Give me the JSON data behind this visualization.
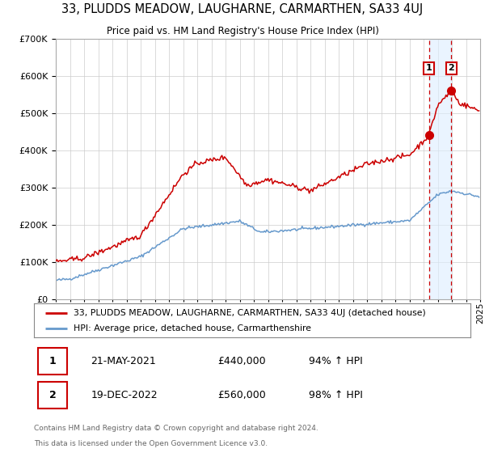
{
  "title": "33, PLUDDS MEADOW, LAUGHARNE, CARMARTHEN, SA33 4UJ",
  "subtitle": "Price paid vs. HM Land Registry's House Price Index (HPI)",
  "legend_line1": "33, PLUDDS MEADOW, LAUGHARNE, CARMARTHEN, SA33 4UJ (detached house)",
  "legend_line2": "HPI: Average price, detached house, Carmarthenshire",
  "footnote1": "Contains HM Land Registry data © Crown copyright and database right 2024.",
  "footnote2": "This data is licensed under the Open Government Licence v3.0.",
  "transaction1_label": "1",
  "transaction1_date": "21-MAY-2021",
  "transaction1_price": "£440,000",
  "transaction1_hpi": "94% ↑ HPI",
  "transaction2_label": "2",
  "transaction2_date": "19-DEC-2022",
  "transaction2_price": "£560,000",
  "transaction2_hpi": "98% ↑ HPI",
  "marker1_x": 2021.38,
  "marker1_y": 440000,
  "marker2_x": 2022.96,
  "marker2_y": 560000,
  "red_color": "#cc0000",
  "blue_color": "#6699cc",
  "blue_fill_color": "#ddeeff",
  "marker_color": "#cc0000",
  "vline_color": "#cc0000",
  "ylim": [
    0,
    700000
  ],
  "xlim_start": 1995,
  "xlim_end": 2025,
  "background_color": "#ffffff",
  "grid_color": "#cccccc"
}
